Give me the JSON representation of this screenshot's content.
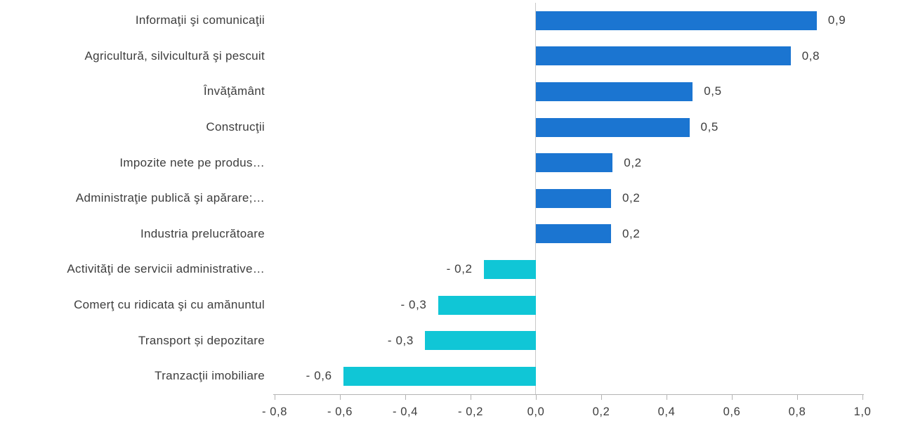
{
  "chart_data": {
    "type": "bar",
    "orientation": "horizontal",
    "title": "",
    "categories": [
      "Informaţii şi comunicaţii",
      "Agricultură, silvicultură şi pescuit",
      "Învăţământ",
      "Construcţii",
      "Impozite nete pe produs…",
      "Administraţie publică şi apărare;…",
      "Industria prelucrătoare",
      "Activităţi de servicii administrative…",
      "Comerţ cu ridicata şi cu amănuntul",
      "Transport și depozitare",
      "Tranzacţii imobiliare"
    ],
    "values": [
      0.9,
      0.8,
      0.5,
      0.5,
      0.2,
      0.2,
      0.2,
      -0.2,
      -0.3,
      -0.3,
      -0.6
    ],
    "value_labels": [
      "0,9",
      "0,8",
      "0,5",
      "0,5",
      "0,2",
      "0,2",
      "0,2",
      "- 0,2",
      "- 0,3",
      "- 0,3",
      "- 0,6"
    ],
    "plotted_values": [
      0.86,
      0.78,
      0.48,
      0.47,
      0.235,
      0.23,
      0.23,
      -0.16,
      -0.3,
      -0.34,
      -0.59
    ],
    "xlabel": "",
    "ylabel": "",
    "xlim": [
      -0.8,
      1.0
    ],
    "x_ticks": [
      -0.8,
      -0.6,
      -0.4,
      -0.2,
      0.0,
      0.2,
      0.4,
      0.6,
      0.8,
      1.0
    ],
    "x_tick_labels": [
      "- 0,8",
      "- 0,6",
      "- 0,4",
      "- 0,2",
      "0,0",
      "0,2",
      "0,4",
      "0,6",
      "0,8",
      "1,0"
    ],
    "grid": false,
    "legend": "none",
    "colors": {
      "positive": "#1b75d1",
      "negative": "#10c6d6",
      "axis": "#b3b3b3",
      "zero_line": "#c9c9c9",
      "text": "#3d3d3d"
    }
  }
}
